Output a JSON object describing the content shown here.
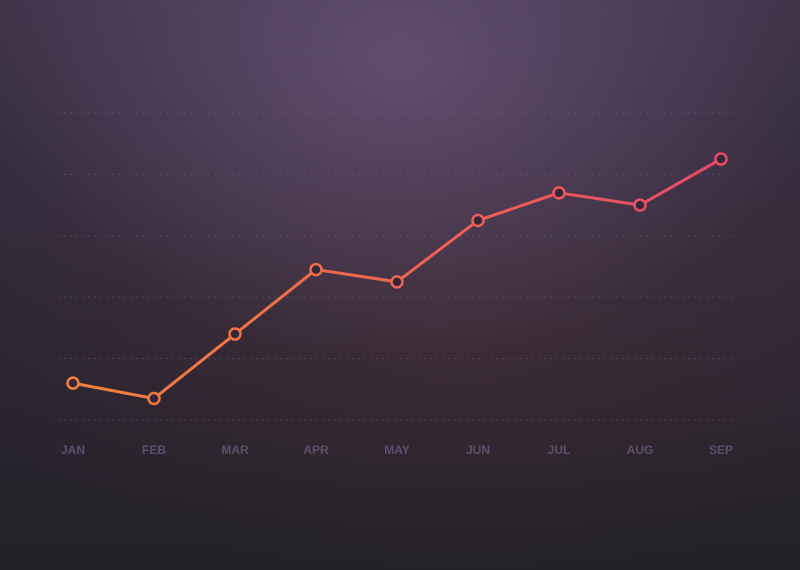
{
  "chart_data": {
    "type": "line",
    "categories": [
      "JAN",
      "FEB",
      "MAR",
      "APR",
      "MAY",
      "JUN",
      "JUL",
      "AUG",
      "SEP"
    ],
    "series": [
      {
        "values": [
          0.6,
          0.35,
          1.4,
          2.45,
          2.25,
          3.25,
          3.7,
          3.5,
          4.25
        ]
      }
    ],
    "title": "",
    "xlabel": "",
    "ylabel": "",
    "ylim": [
      0,
      5
    ],
    "grid": true,
    "legend": "none",
    "colors": {
      "line_start": "#f2813a",
      "line_end": "#ea4a66",
      "grid": "#6b5d78",
      "tick_label": "#5e4f6e"
    }
  }
}
